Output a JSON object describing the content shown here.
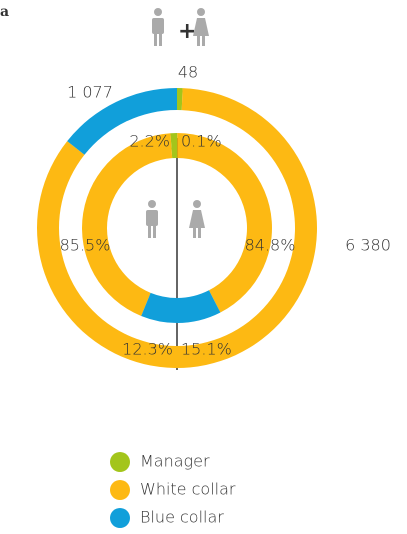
{
  "chart_data": {
    "type": "nested-donut",
    "panel_label": "a",
    "categories": [
      "Manager",
      "White collar",
      "Blue collar"
    ],
    "colors": [
      "#a3c51b",
      "#fdb913",
      "#119fda"
    ],
    "outer": {
      "values": [
        48,
        6380,
        1077
      ],
      "value_labels": [
        "48",
        "6 380",
        "1 077"
      ]
    },
    "inner_left": {
      "values": [
        2.2,
        85.5,
        12.3
      ],
      "value_labels": [
        "2.2%",
        "85.5%",
        "12.3%"
      ]
    },
    "inner_right": {
      "values": [
        0.1,
        84.8,
        15.1
      ],
      "value_labels": [
        "0.1%",
        "84.8%",
        "15.1%"
      ]
    }
  }
}
